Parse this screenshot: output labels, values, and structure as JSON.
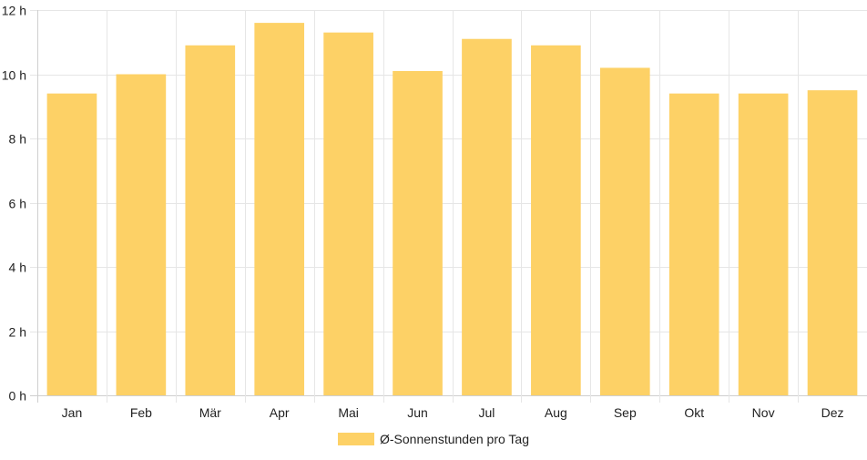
{
  "chart_data": {
    "type": "bar",
    "categories": [
      "Jan",
      "Feb",
      "Mär",
      "Apr",
      "Mai",
      "Jun",
      "Jul",
      "Aug",
      "Sep",
      "Okt",
      "Nov",
      "Dez"
    ],
    "series": [
      {
        "name": "Ø-Sonnenstunden pro Tag",
        "values": [
          9.4,
          10.0,
          10.9,
          11.6,
          11.3,
          10.1,
          11.1,
          10.9,
          10.2,
          9.4,
          9.4,
          9.5
        ],
        "color": "#fdd166"
      }
    ],
    "ylim": [
      0,
      12
    ],
    "yticks": [
      "0 h",
      "2 h",
      "4 h",
      "6 h",
      "8 h",
      "10 h",
      "12 h"
    ],
    "grid": true,
    "legend_position": "bottom"
  }
}
